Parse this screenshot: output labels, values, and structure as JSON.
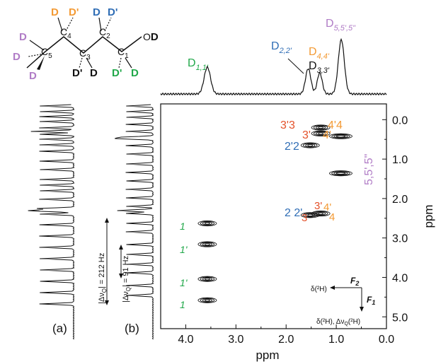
{
  "colors": {
    "purple": "#b07cc6",
    "orange": "#f39a34",
    "blue": "#2f6db5",
    "green": "#21a84a",
    "red": "#e4512a",
    "black": "#111111"
  },
  "molecule": {
    "carbons": [
      "C5",
      "C4",
      "C3",
      "C2",
      "C1"
    ],
    "c5_label": "C",
    "c5_sub": "5",
    "c4_label": "C",
    "c4_sub": "4",
    "c3_label": "C",
    "c3_sub": "3",
    "c2_label": "C",
    "c2_sub": "2",
    "c1_label": "C",
    "c1_sub": "1",
    "d_label": "D",
    "dprime_label": "D'",
    "oxygen": "O"
  },
  "top_spectrum": {
    "label_d11": "D",
    "label_d11_sub": "1,1'",
    "label_d22": "D",
    "label_d22_sub": "2,2'",
    "label_d44": "D",
    "label_d44_sub": "4,4'",
    "label_d33": "D",
    "label_d33_sub": "3,3'",
    "label_d55": "D",
    "label_d55_sub": "5,5',5\""
  },
  "side_panels": {
    "a_label": "(a)",
    "b_label": "(b)",
    "big_split_text": "|Δν",
    "big_split_sub": "Q",
    "big_split_value": "| = 212 Hz",
    "small_split_text": "|Δν",
    "small_split_sub": "Q",
    "small_split_value": "| = 91 Hz"
  },
  "contour_labels": {
    "one": "1",
    "one_prime": "1'",
    "two_prime_two": "2'2",
    "two_two_prime": "2 2'",
    "three_prime_three": "3'3",
    "three": "3",
    "three_prime": "3'",
    "four_prime_four": "4'4",
    "four_prime": "4'",
    "four": "4",
    "five": "5,5',5\""
  },
  "axes_legend": {
    "f2": "F",
    "f2_sub": "2",
    "f1": "F",
    "f1_sub": "1",
    "delta_h": "δ(²H)",
    "delta_h_dnu": "δ(²H), Δν",
    "dnu_sub": "Q",
    "dnu_tail": "(²H)"
  },
  "chart_data": {
    "type": "heatmap",
    "title": "",
    "xlabel": "ppm",
    "ylabel": "ppm",
    "xlim": [
      4.5,
      0.0
    ],
    "ylim": [
      -0.4,
      5.3
    ],
    "x_ticks": [
      "4.0",
      "3.0",
      "2.0",
      "1.0",
      "0.0"
    ],
    "y_ticks": [
      "0.0",
      "1.0",
      "2.0",
      "3.0",
      "4.0",
      "5.0"
    ],
    "x_tick_values": [
      4.0,
      3.0,
      2.0,
      1.0,
      0.0
    ],
    "y_tick_values": [
      0.0,
      1.0,
      2.0,
      3.0,
      4.0,
      5.0
    ],
    "peaks": [
      {
        "x": 3.57,
        "y": 2.63,
        "label": "1"
      },
      {
        "x": 3.57,
        "y": 3.16,
        "label": "1'"
      },
      {
        "x": 3.57,
        "y": 4.04,
        "label": "1'"
      },
      {
        "x": 3.57,
        "y": 4.58,
        "label": "1"
      },
      {
        "x": 1.52,
        "y": 0.65,
        "label": "2'2"
      },
      {
        "x": 1.52,
        "y": 2.42,
        "label": "2 2'"
      },
      {
        "x": 1.31,
        "y": 0.2,
        "label": "3'3"
      },
      {
        "x": 1.31,
        "y": 0.35,
        "label": "3'3"
      },
      {
        "x": 1.31,
        "y": 2.38,
        "label": "3' 3"
      },
      {
        "x": 0.91,
        "y": 0.42,
        "label": "4'4"
      },
      {
        "x": 0.91,
        "y": 1.36,
        "label": "5,5',5\""
      }
    ],
    "projection_peaks_ppm": [
      3.57,
      1.56,
      1.33,
      0.9
    ]
  }
}
